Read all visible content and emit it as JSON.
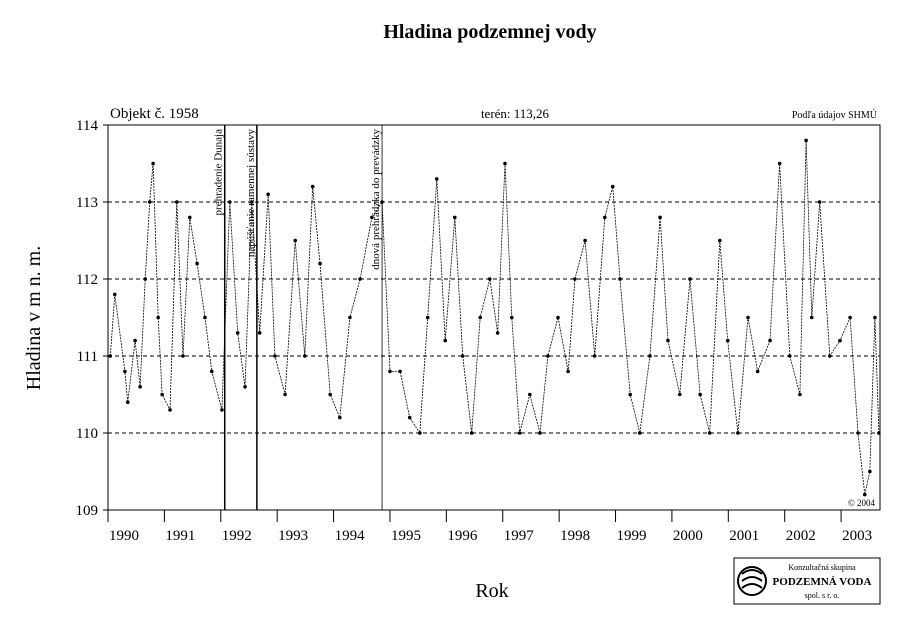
{
  "chart_data": {
    "type": "line",
    "title": "Hladina podzemnej vody",
    "ylabel": "Hladina v m n. m.",
    "xlabel": "Rok",
    "object": "Objekt č. 1958",
    "terrain": "terén: 113,26",
    "source": "Podľa údajov SHMÚ",
    "copyright": "© 2004",
    "logo": {
      "top": "Konzultačná skupina",
      "name": "PODZEMNÁ VODA",
      "bottom": "spol. s r. o."
    },
    "xlim": [
      1990,
      2003.69
    ],
    "xticks": [
      1990,
      1991,
      1992,
      1993,
      1994,
      1995,
      1996,
      1997,
      1998,
      1999,
      2000,
      2001,
      2002,
      2003
    ],
    "ylim": [
      109,
      114
    ],
    "yticks": [
      109,
      110,
      111,
      112,
      113,
      114
    ],
    "grid": true,
    "annotations": [
      {
        "x": 1992.07,
        "text": "prehradenie Dunaja"
      },
      {
        "x": 1992.64,
        "text": "napúšťanie ramennej sústavy"
      },
      {
        "x": 1994.86,
        "text": "dnová prehrádzka do prevádzky"
      }
    ],
    "x": [
      1990.04,
      1990.12,
      1990.3,
      1990.35,
      1990.48,
      1990.57,
      1990.66,
      1990.74,
      1990.8,
      1990.89,
      1990.96,
      1991.1,
      1991.22,
      1991.33,
      1991.45,
      1991.58,
      1991.72,
      1991.84,
      1992.02,
      1992.16,
      1992.3,
      1992.43,
      1992.55,
      1992.69,
      1992.84,
      1992.96,
      1993.14,
      1993.32,
      1993.49,
      1993.63,
      1993.76,
      1993.94,
      1994.11,
      1994.29,
      1994.47,
      1994.68,
      1994.86,
      1995.0,
      1995.18,
      1995.35,
      1995.53,
      1995.67,
      1995.83,
      1995.98,
      1996.15,
      1996.29,
      1996.45,
      1996.6,
      1996.77,
      1996.91,
      1997.04,
      1997.16,
      1997.3,
      1997.48,
      1997.66,
      1997.8,
      1997.98,
      1998.16,
      1998.28,
      1998.46,
      1998.63,
      1998.81,
      1998.95,
      1999.08,
      1999.26,
      1999.43,
      1999.61,
      1999.79,
      1999.93,
      2000.14,
      2000.32,
      2000.5,
      2000.67,
      2000.85,
      2000.99,
      2001.17,
      2001.35,
      2001.52,
      2001.74,
      2001.91,
      2002.09,
      2002.27,
      2002.38,
      2002.48,
      2002.62,
      2002.8,
      2002.98,
      2003.16,
      2003.3,
      2003.42,
      2003.51,
      2003.6,
      2003.67
    ],
    "series": [
      {
        "name": "Hladina",
        "color": "#000000",
        "values": [
          111.0,
          111.8,
          110.8,
          110.4,
          111.2,
          110.6,
          112.0,
          113.0,
          113.5,
          111.5,
          110.5,
          110.3,
          113.0,
          111.0,
          112.8,
          112.2,
          111.5,
          110.8,
          110.3,
          113.0,
          111.3,
          110.6,
          113.0,
          111.3,
          113.1,
          111.0,
          110.5,
          112.5,
          111.0,
          113.2,
          112.2,
          110.5,
          110.2,
          111.5,
          112.0,
          112.8,
          113.0,
          110.8,
          110.8,
          110.2,
          110.0,
          111.5,
          113.3,
          111.2,
          112.8,
          111.0,
          110.0,
          111.5,
          112.0,
          111.3,
          113.5,
          111.5,
          110.0,
          110.5,
          110.0,
          111.0,
          111.5,
          110.8,
          112.0,
          112.5,
          111.0,
          112.8,
          113.2,
          112.0,
          110.5,
          110.0,
          111.0,
          112.8,
          111.2,
          110.5,
          112.0,
          110.5,
          110.0,
          112.5,
          111.2,
          110.0,
          111.5,
          110.8,
          111.2,
          113.5,
          111.0,
          110.5,
          113.8,
          111.5,
          113.0,
          111.0,
          111.2,
          111.5,
          110.0,
          109.2,
          109.5,
          111.5,
          110.0
        ]
      }
    ]
  }
}
